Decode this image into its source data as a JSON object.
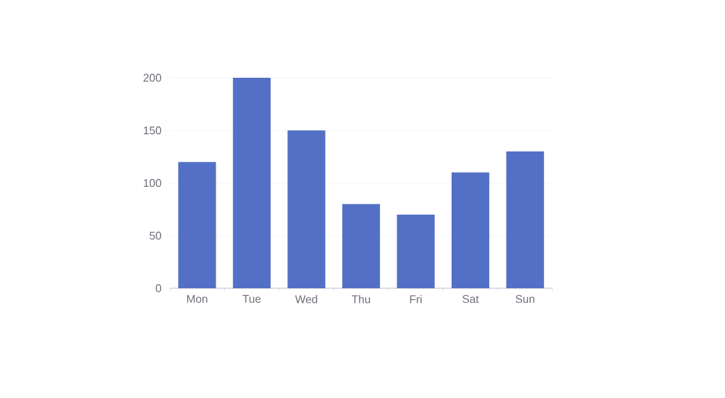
{
  "chart_data": {
    "type": "bar",
    "categories": [
      "Mon",
      "Tue",
      "Wed",
      "Thu",
      "Fri",
      "Sat",
      "Sun"
    ],
    "values": [
      120,
      200,
      150,
      80,
      70,
      110,
      130
    ],
    "color": "#5470c6",
    "ylim": [
      0,
      200
    ],
    "yticks": [
      0,
      50,
      100,
      150,
      200
    ],
    "grid": "y"
  }
}
